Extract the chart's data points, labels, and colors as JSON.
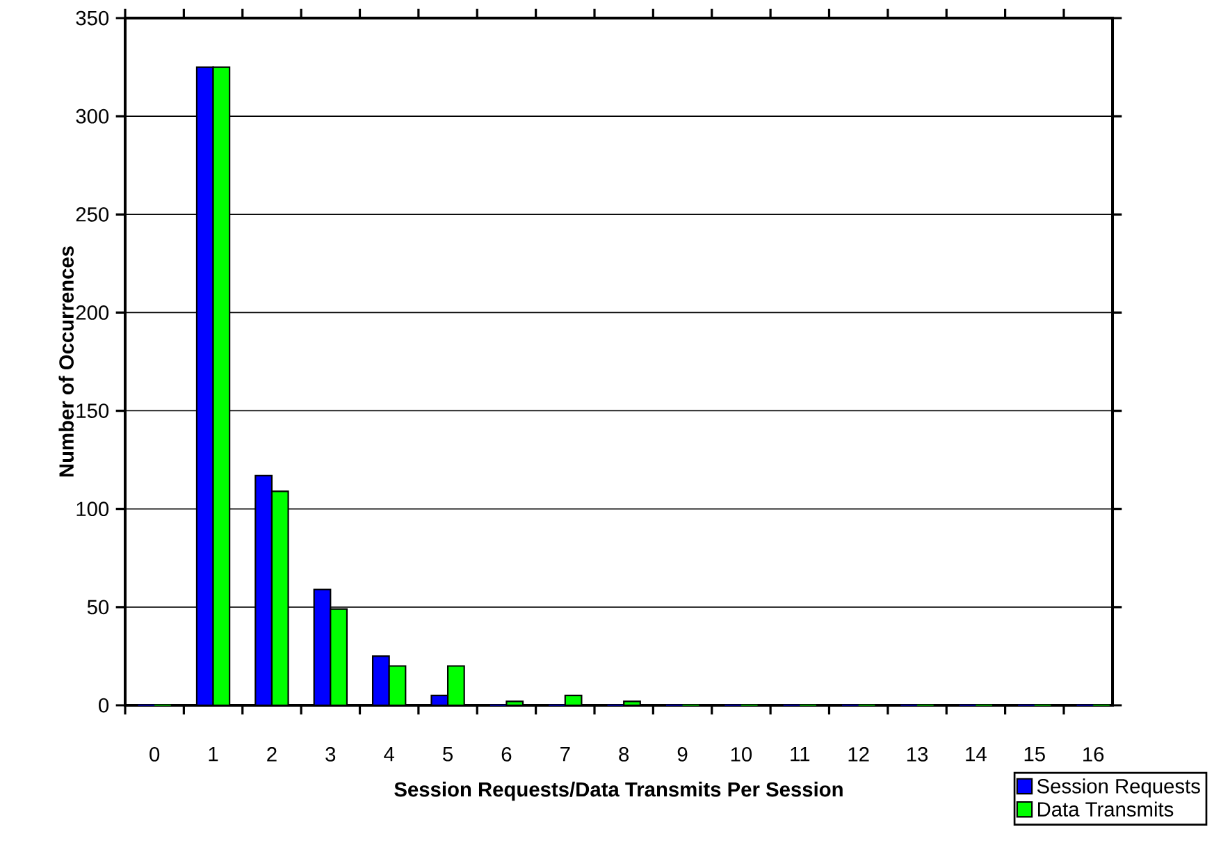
{
  "chart_data": {
    "type": "bar",
    "xlabel": "Session Requests/Data Transmits Per Session",
    "ylabel": "Number of Occurrences",
    "categories": [
      "0",
      "1",
      "2",
      "3",
      "4",
      "5",
      "6",
      "7",
      "8",
      "9",
      "10",
      "11",
      "12",
      "13",
      "14",
      "15",
      "16"
    ],
    "series": [
      {
        "name": "Session Requests",
        "color": "#0000ff",
        "values": [
          0,
          325,
          117,
          59,
          25,
          5,
          0,
          0,
          0,
          0,
          0,
          0,
          0,
          0,
          0,
          0,
          0
        ]
      },
      {
        "name": "Data Transmits",
        "color": "#00ff00",
        "values": [
          0,
          325,
          109,
          49,
          20,
          20,
          2,
          5,
          2,
          0,
          0,
          0,
          0,
          0,
          0,
          0,
          0
        ]
      }
    ],
    "ylim": [
      0,
      350
    ],
    "yticks": [
      0,
      50,
      100,
      150,
      200,
      250,
      300,
      350
    ],
    "grid": "y",
    "legend": "bottom right"
  }
}
